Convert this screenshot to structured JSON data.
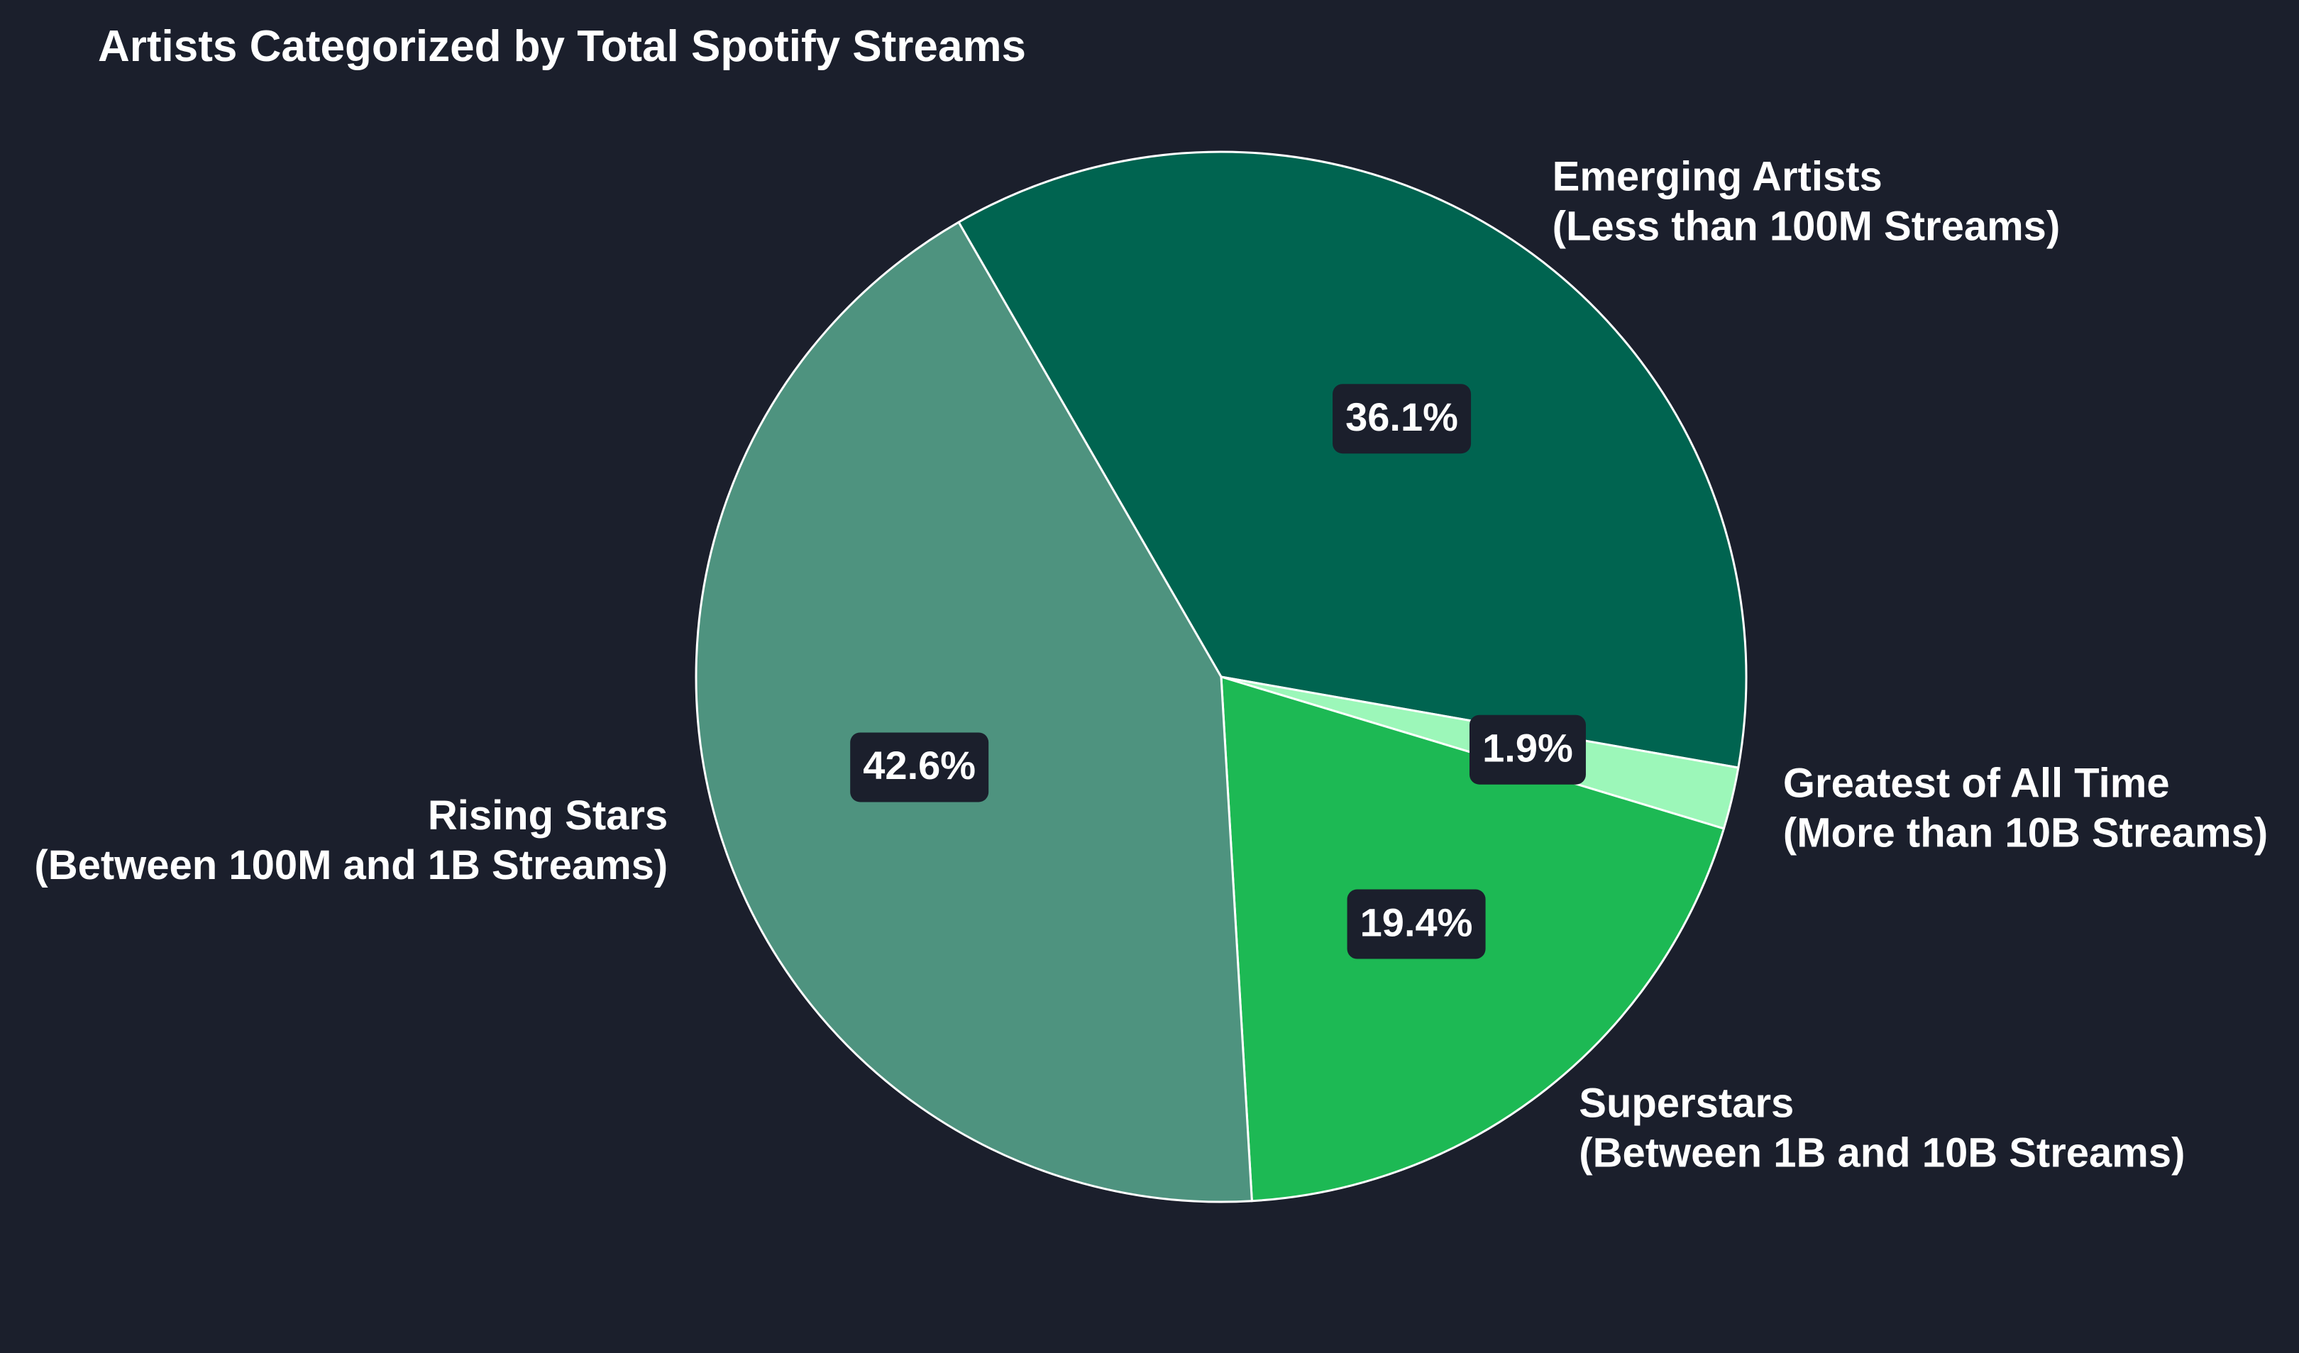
{
  "chart_data": {
    "type": "pie",
    "title": "Artists Categorized by Total Spotify Streams",
    "colors": {
      "background": "#1b1f2c",
      "edge": "#ffffff",
      "label_box": "#1b1f2c"
    },
    "slices": [
      {
        "label_line1": "Emerging Artists",
        "label_line2": "(Less than 100M Streams)",
        "value": 36.1,
        "pct_text": "36.1%",
        "color": "#006450"
      },
      {
        "label_line1": "Greatest of All Time",
        "label_line2": "(More than 10B Streams)",
        "value": 1.9,
        "pct_text": "1.9%",
        "color": "#9cf7b9"
      },
      {
        "label_line1": "Superstars",
        "label_line2": "(Between 1B and 10B Streams)",
        "value": 19.4,
        "pct_text": "19.4%",
        "color": "#1db954"
      },
      {
        "label_line1": "Rising Stars",
        "label_line2": "(Between 100M and 1B Streams)",
        "value": 42.6,
        "pct_text": "42.6%",
        "color": "#4e937f"
      }
    ]
  }
}
